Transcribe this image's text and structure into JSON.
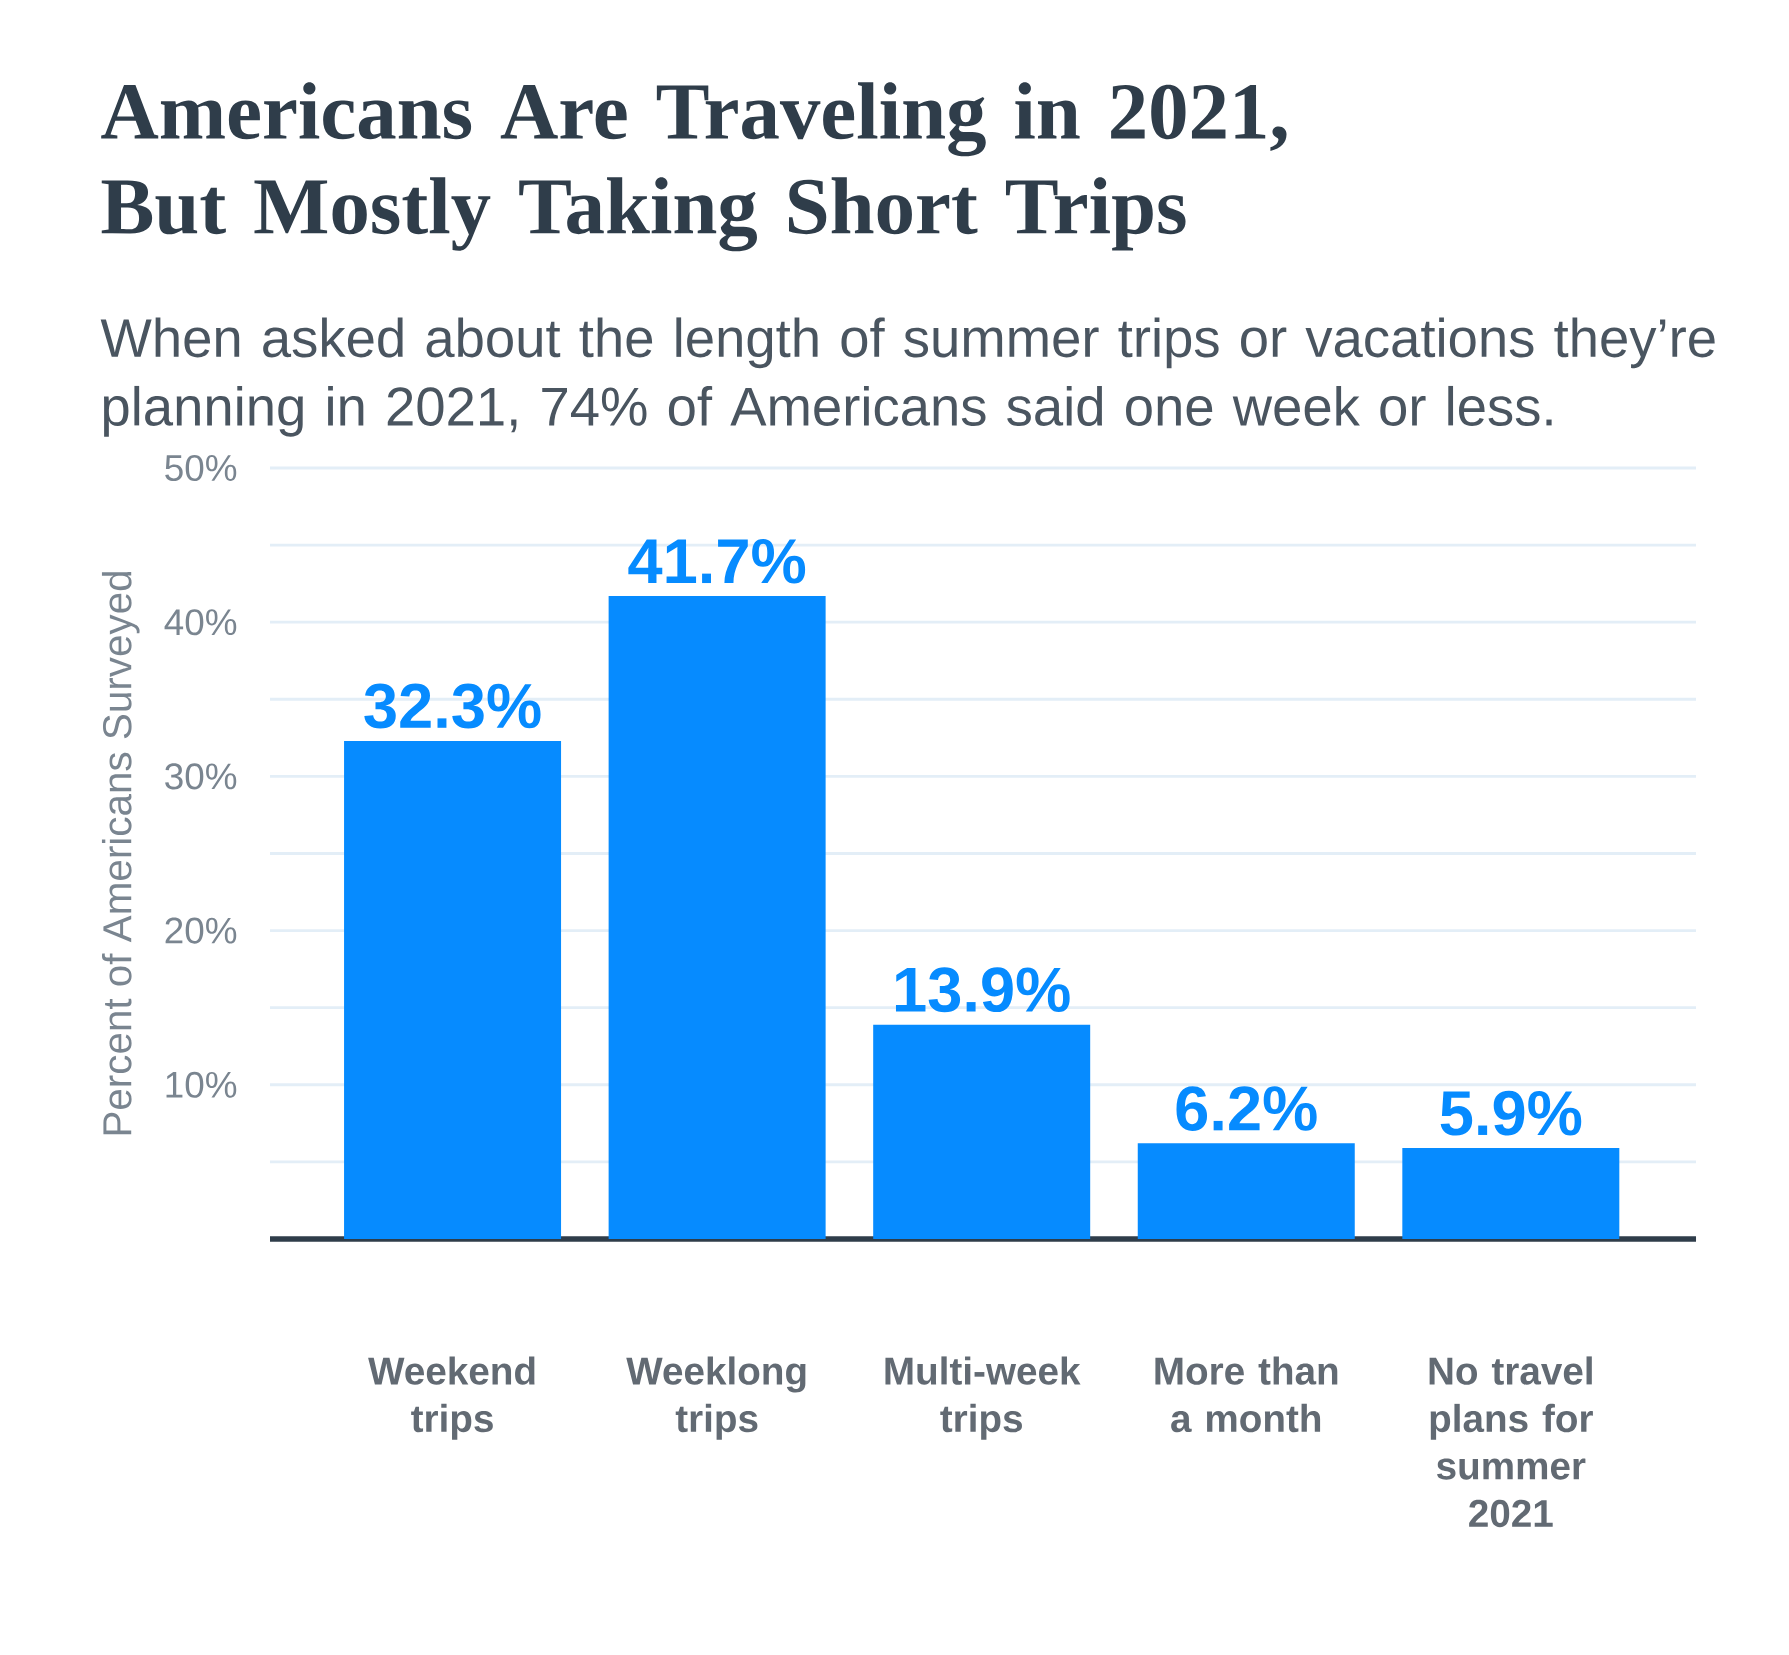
{
  "chart_data": {
    "type": "bar",
    "title": "Americans Are Traveling in 2021, But Mostly Taking Short Trips",
    "subtitle": "When asked about the length of summer trips or vacations they’re planning in 2021, 74% of Americans said one week or less.",
    "ylabel": "Percent of Americans Surveyed",
    "categories": [
      "Weekend trips",
      "Weeklong trips",
      "Multi-week trips",
      "More than a month",
      "No travel plans for summer 2021"
    ],
    "values": [
      32.3,
      41.7,
      13.9,
      6.2,
      5.9
    ],
    "value_labels": [
      "32.3%",
      "41.7%",
      "13.9%",
      "6.2%",
      "5.9%"
    ],
    "color": "#068bff",
    "ylim": [
      0,
      50
    ],
    "yticks": [
      {
        "value": 0,
        "label": null
      },
      {
        "value": 5,
        "label": null
      },
      {
        "value": 10,
        "label": "10%"
      },
      {
        "value": 15,
        "label": null
      },
      {
        "value": 20,
        "label": "20%"
      },
      {
        "value": 25,
        "label": null
      },
      {
        "value": 30,
        "label": "30%"
      },
      {
        "value": 35,
        "label": null
      },
      {
        "value": 40,
        "label": "40%"
      },
      {
        "value": 45,
        "label": null
      },
      {
        "value": 50,
        "label": "50%"
      }
    ],
    "grid": "y"
  }
}
